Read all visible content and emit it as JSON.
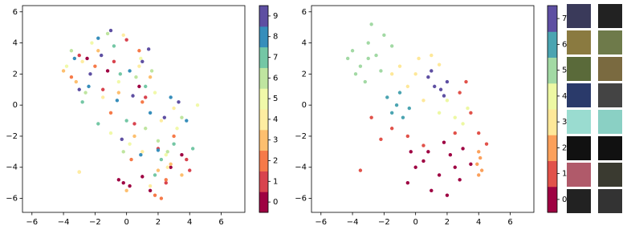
{
  "chart_data": [
    {
      "type": "scatter",
      "xlim": [
        -6.6,
        7.5
      ],
      "ylim": [
        -6.9,
        6.4
      ],
      "xticks": [
        {
          "value": -6,
          "label": "−6"
        },
        {
          "value": -4,
          "label": "−4"
        },
        {
          "value": -2,
          "label": "−2"
        },
        0,
        2,
        4,
        6
      ],
      "yticks": [
        {
          "value": -6,
          "label": "−6"
        },
        {
          "value": -4,
          "label": "−4"
        },
        {
          "value": -2,
          "label": "−2"
        },
        0,
        2,
        4,
        6
      ],
      "series": [
        {
          "name": "0",
          "color": "#9e0142",
          "x": [
            -0.5,
            0.2,
            1.5,
            2.8,
            -2.5,
            0.8,
            -1.2,
            3.5,
            1.0,
            -0.2
          ],
          "values": [
            -4.8,
            -5.2,
            -5.5,
            -4.0,
            3.0,
            1.2,
            2.2,
            -3.2,
            -4.6,
            -5.0
          ]
        },
        {
          "name": "1",
          "color": "#d8434e",
          "x": [
            -3.0,
            -1.5,
            0.5,
            2.0,
            3.8,
            1.2,
            -0.8,
            2.5,
            0.0,
            4.0
          ],
          "values": [
            3.2,
            1.0,
            -1.2,
            -2.8,
            -3.5,
            0.5,
            2.8,
            -5.0,
            4.2,
            -4.2
          ]
        },
        {
          "name": "2",
          "color": "#f67a49",
          "x": [
            -2.0,
            1.8,
            2.5,
            0.3,
            -3.5,
            3.0,
            1.0,
            -1.0,
            2.2,
            0.8
          ],
          "values": [
            2.5,
            -5.8,
            -4.8,
            -3.5,
            1.8,
            -2.0,
            0.2,
            -0.5,
            -6.0,
            3.5
          ]
        },
        {
          "name": "3",
          "color": "#fdbf6f",
          "x": [
            -3.2,
            -1.8,
            0.5,
            2.8,
            1.5,
            3.5,
            -0.5,
            2.0,
            -4.0,
            0.0,
            -3.0
          ],
          "values": [
            1.5,
            3.5,
            -2.0,
            -3.8,
            1.8,
            -4.5,
            0.8,
            -4.2,
            2.2,
            -5.5,
            -4.3
          ]
        },
        {
          "name": "4",
          "color": "#feeda1",
          "x": [
            -1.5,
            0.8,
            2.2,
            -2.8,
            1.0,
            3.0,
            -0.2,
            1.5,
            -3.0,
            2.6
          ],
          "values": [
            0.5,
            2.5,
            -1.0,
            2.8,
            -3.0,
            -0.2,
            4.5,
            -5.2,
            -4.3,
            -4.0
          ]
        },
        {
          "name": "5",
          "color": "#f1f9a9",
          "x": [
            -2.2,
            -0.5,
            1.8,
            3.2,
            0.2,
            -3.8,
            2.5,
            -1.0,
            4.5,
            0.9
          ],
          "values": [
            4.0,
            1.5,
            0.8,
            -1.5,
            -2.5,
            2.5,
            -3.2,
            -1.8,
            0.0,
            3.0
          ]
        },
        {
          "name": "6",
          "color": "#bfe5a0",
          "x": [
            -1.2,
            0.6,
            2.0,
            -2.6,
            1.2,
            3.5,
            -0.2,
            2.6,
            -3.5,
            1.6
          ],
          "values": [
            4.6,
            1.8,
            -2.3,
            0.8,
            -1.5,
            -0.8,
            -3.0,
            -3.0,
            3.5,
            2.2
          ]
        },
        {
          "name": "7",
          "color": "#74c7a5",
          "x": [
            -2.8,
            -0.8,
            1.2,
            3.0,
            0.0,
            -1.8,
            2.2,
            4.2,
            1.8,
            -0.4
          ],
          "values": [
            0.2,
            3.8,
            1.2,
            -2.5,
            -1.0,
            -1.2,
            -3.5,
            -2.8,
            -4.5,
            2.0
          ]
        },
        {
          "name": "8",
          "color": "#378ebb",
          "x": [
            -1.8,
            0.2,
            1.5,
            -3.3,
            2.8,
            0.9,
            -0.6,
            3.8,
            2.0,
            -2.4
          ],
          "values": [
            4.3,
            2.2,
            -0.5,
            3.0,
            0.5,
            -3.2,
            0.3,
            -1.0,
            -2.9,
            1.2
          ]
        },
        {
          "name": "9",
          "color": "#5e4fa2",
          "x": [
            -1.0,
            1.4,
            -2.3,
            0.4,
            2.4,
            -3.0,
            1.0,
            3.3,
            -0.3,
            -1.6
          ],
          "values": [
            4.8,
            3.6,
            2.0,
            0.6,
            -0.8,
            1.0,
            2.8,
            0.2,
            -2.2,
            3.2
          ]
        }
      ]
    },
    {
      "type": "scatter",
      "xlim": [
        -6.6,
        7.5
      ],
      "ylim": [
        -6.9,
        6.4
      ],
      "xticks": [
        {
          "value": -6,
          "label": "−6"
        },
        {
          "value": -4,
          "label": "−4"
        },
        {
          "value": -2,
          "label": "−2"
        },
        0,
        2,
        4,
        6
      ],
      "yticks": [
        {
          "value": -6,
          "label": "−6"
        },
        {
          "value": -4,
          "label": "−4"
        },
        {
          "value": -2,
          "label": "−2"
        },
        0,
        2,
        4,
        6
      ],
      "series": [
        {
          "name": "0",
          "color": "#9e0142",
          "x": [
            0.0,
            0.8,
            1.5,
            2.2,
            3.0,
            -0.5,
            1.0,
            2.0,
            2.8,
            3.5,
            0.5,
            1.8,
            2.5,
            -0.3
          ],
          "values": [
            -4.0,
            -3.0,
            -4.5,
            -3.2,
            -2.8,
            -5.0,
            -5.5,
            -5.8,
            -4.8,
            -3.8,
            -3.6,
            -2.4,
            -4.0,
            -3.0
          ]
        },
        {
          "name": "1",
          "color": "#e1524a",
          "x": [
            2.8,
            3.5,
            4.0,
            3.2,
            -1.5,
            -2.2,
            -0.5,
            -2.8,
            0.5,
            2.5,
            4.5,
            -3.5
          ],
          "values": [
            0.8,
            -0.5,
            -1.8,
            1.5,
            -1.5,
            -2.2,
            -2.0,
            -0.8,
            -2.6,
            -1.8,
            -2.5,
            -4.2
          ]
        },
        {
          "name": "2",
          "color": "#fba05b",
          "x": [
            4.0,
            4.1,
            3.9,
            4.2,
            4.0
          ],
          "values": [
            -3.0,
            -3.4,
            -3.8,
            -4.2,
            -4.5
          ]
        },
        {
          "name": "3",
          "color": "#fee899",
          "x": [
            -1.0,
            0.0,
            1.0,
            -0.5,
            0.5,
            -1.5,
            1.5,
            0.2
          ],
          "values": [
            2.5,
            2.0,
            3.2,
            1.2,
            0.3,
            2.0,
            2.6,
            3.0
          ]
        },
        {
          "name": "4",
          "color": "#edf8a3",
          "x": [
            1.5,
            2.5,
            3.0,
            2.0,
            3.3
          ],
          "values": [
            -0.5,
            -0.8,
            -1.2,
            0.3,
            -0.2
          ]
        },
        {
          "name": "5",
          "color": "#a2d9a4",
          "x": [
            -4.0,
            -3.5,
            -3.0,
            -2.5,
            -2.0,
            -3.8,
            -3.2,
            -1.5,
            -2.8,
            -4.3,
            -2.2,
            -3.0
          ],
          "values": [
            3.5,
            2.5,
            4.0,
            3.2,
            4.5,
            2.0,
            1.5,
            3.8,
            5.2,
            3.0,
            2.2,
            3.0
          ]
        },
        {
          "name": "6",
          "color": "#4ba4b1",
          "x": [
            -1.8,
            -1.2,
            -0.8,
            -1.5,
            -1.0,
            -0.4
          ],
          "values": [
            0.5,
            0.0,
            -0.8,
            -0.5,
            0.8,
            -0.2
          ]
        },
        {
          "name": "7",
          "color": "#5e4fa2",
          "x": [
            0.8,
            1.2,
            1.6,
            2.0,
            1.0,
            1.8
          ],
          "values": [
            1.8,
            1.2,
            1.0,
            1.5,
            2.2,
            0.6
          ]
        }
      ]
    }
  ]
}
